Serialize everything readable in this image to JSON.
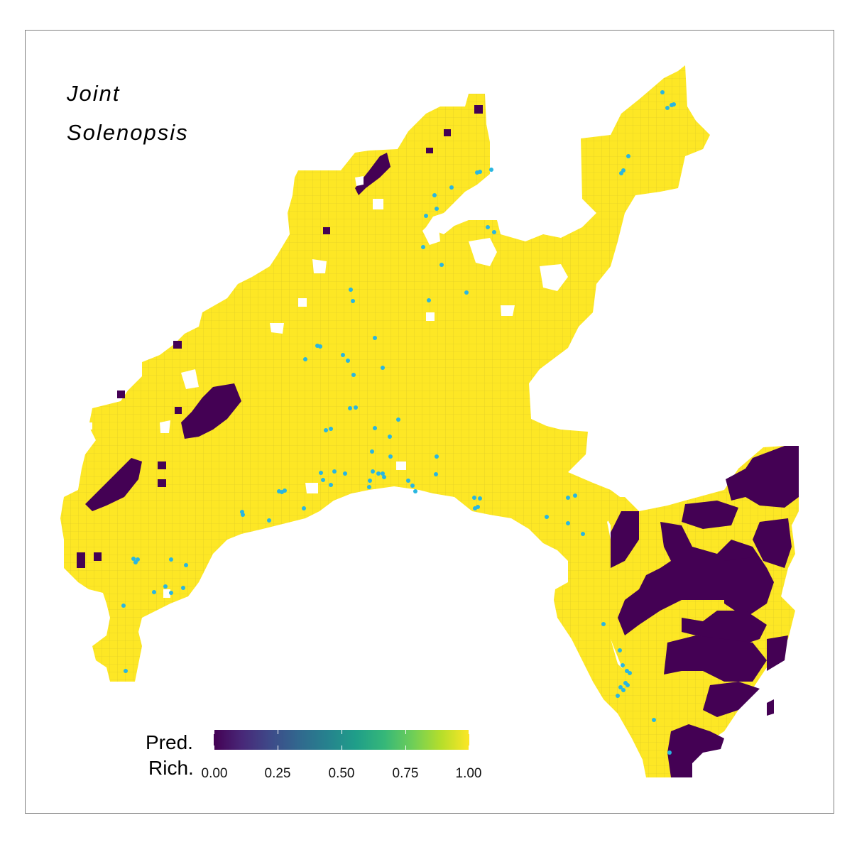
{
  "title_line1": "Joint",
  "title_line2": "Solenopsis",
  "legend": {
    "title_line1": "Pred.",
    "title_line2": "Rich.",
    "min": 0,
    "max": 1,
    "ticks": [
      "0.00",
      "0.25",
      "0.50",
      "0.75",
      "1.00"
    ],
    "palette": "viridis"
  },
  "colors": {
    "high": "#fde725",
    "low": "#440154",
    "points": "#29b6e0",
    "cell_border": "#b8a927"
  }
}
